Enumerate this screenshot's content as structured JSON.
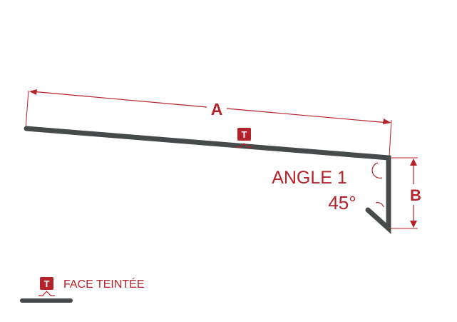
{
  "colors": {
    "profile": "#474a4a",
    "accent": "#b5222a",
    "badge_text": "#ffffff"
  },
  "dimensions": {
    "a_label": "A",
    "b_label": "B"
  },
  "angle": {
    "name": "ANGLE 1",
    "value": "45°"
  },
  "badge": {
    "letter": "T"
  },
  "legend": {
    "label": "FACE TEINTÉE",
    "badge_letter": "T"
  }
}
